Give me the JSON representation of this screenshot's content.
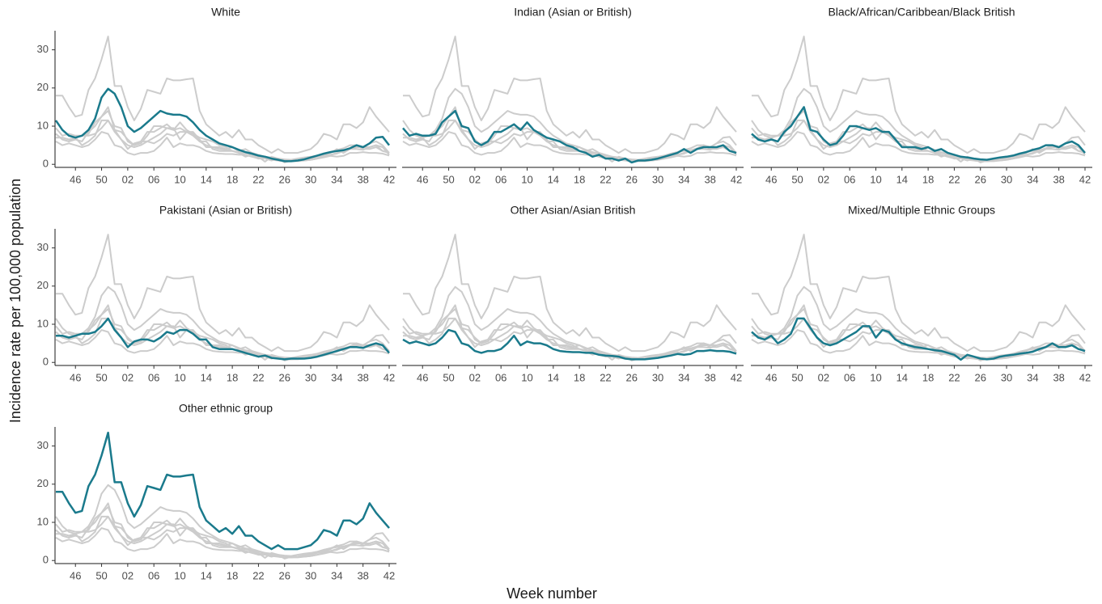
{
  "chart_data": {
    "type": "line",
    "x_label": "Week number",
    "y_label": "Incidence rate per 100,000 population",
    "highlight_color": "#1a7a8c",
    "background_color": "#cccccc",
    "categories": [
      null,
      null,
      null,
      "46",
      null,
      null,
      null,
      "50",
      null,
      null,
      null,
      "02",
      null,
      null,
      null,
      "06",
      null,
      null,
      null,
      "10",
      null,
      null,
      null,
      "14",
      null,
      null,
      null,
      "18",
      null,
      null,
      null,
      "22",
      null,
      null,
      null,
      "26",
      null,
      null,
      null,
      "30",
      null,
      null,
      null,
      "34",
      null,
      null,
      null,
      "38",
      null,
      null,
      null,
      "42"
    ],
    "ylim": [
      -0.8,
      35
    ],
    "yticks": [
      0,
      10,
      20,
      30
    ],
    "series": [
      {
        "name": "White",
        "values": [
          11.5,
          9,
          7.5,
          7,
          7.5,
          9,
          12,
          17.5,
          19.8,
          18.5,
          15,
          10,
          8.5,
          9.5,
          11,
          12.5,
          14,
          13.3,
          13,
          13,
          12.5,
          11,
          9,
          7.5,
          6.5,
          5.5,
          5,
          4.5,
          3.8,
          3.2,
          2.8,
          2.3,
          2,
          1.5,
          1.2,
          0.8,
          0.8,
          1,
          1.3,
          1.8,
          2.3,
          2.8,
          3.2,
          3.5,
          3.7,
          4.2,
          5,
          4.5,
          5.5,
          7,
          7.2,
          5
        ]
      },
      {
        "name": "Indian (Asian or British)",
        "values": [
          9.5,
          7.5,
          8,
          7.5,
          7.5,
          8,
          11,
          12.5,
          14,
          10,
          9.5,
          6,
          5,
          6,
          8.5,
          8.5,
          9.5,
          10.5,
          9,
          11,
          9,
          8,
          7,
          6.5,
          6,
          5,
          4.5,
          3.5,
          3,
          2,
          2.5,
          1.5,
          1.5,
          1,
          1.5,
          0.5,
          1,
          1,
          1.2,
          1.5,
          2,
          2.5,
          3,
          4,
          3,
          4,
          4.5,
          4.5,
          4.5,
          5,
          3.5,
          3
        ]
      },
      {
        "name": "Black/African/Caribbean/Black British",
        "values": [
          8,
          6.5,
          6,
          6.5,
          6,
          8.5,
          10,
          12.5,
          15,
          9,
          8.5,
          6.5,
          5,
          5.5,
          7.5,
          10,
          10,
          9.5,
          9,
          9.5,
          8.5,
          8.5,
          6.5,
          4.5,
          4.5,
          4.5,
          4,
          4.5,
          3.5,
          4,
          3,
          2.5,
          2,
          1.8,
          1.5,
          1.3,
          1.2,
          1.5,
          1.8,
          2,
          2.3,
          2.8,
          3.2,
          3.8,
          4.2,
          5,
          5,
          4.5,
          5.5,
          6,
          5,
          3
        ]
      },
      {
        "name": "Pakistani (Asian or British)",
        "values": [
          7,
          7,
          6.5,
          7,
          7.5,
          7.5,
          8,
          9.5,
          11.5,
          8.5,
          6.5,
          4,
          5.5,
          6,
          6,
          5.5,
          6.5,
          8,
          7.5,
          8.5,
          8.5,
          7.5,
          6,
          6,
          4,
          3.5,
          3.5,
          3.5,
          3,
          2.5,
          2,
          1.5,
          1.8,
          1.2,
          1,
          0.8,
          1,
          1,
          1,
          1.2,
          1.5,
          2,
          2.5,
          3,
          3.5,
          4,
          4,
          3.8,
          4.5,
          5,
          4.5,
          2.5
        ]
      },
      {
        "name": "Other Asian/Asian British",
        "values": [
          6,
          5,
          5.5,
          5,
          4.5,
          5,
          6.5,
          8.5,
          8,
          5,
          4.5,
          3,
          2.5,
          3,
          3,
          3.5,
          5,
          7,
          4.5,
          5.5,
          5,
          5,
          4.5,
          3.5,
          3,
          2.8,
          2.7,
          2.7,
          2.5,
          2.5,
          2,
          1.8,
          1.7,
          1.5,
          1,
          0.8,
          0.8,
          0.8,
          1,
          1.2,
          1.5,
          1.8,
          2.2,
          2,
          2.2,
          3,
          3,
          3.2,
          3,
          3,
          2.8,
          2.3
        ]
      },
      {
        "name": "Mixed/Multiple Ethnic Groups",
        "values": [
          8,
          6.5,
          6,
          7,
          5,
          6,
          7.5,
          11.5,
          11.5,
          9,
          6.5,
          5,
          4.5,
          5,
          6,
          7,
          8,
          9.5,
          9.5,
          6.5,
          8.5,
          8,
          6,
          5,
          4.5,
          4,
          3.8,
          3.5,
          3.2,
          3,
          2.5,
          2,
          0.7,
          2,
          1.5,
          1,
          0.8,
          1,
          1.5,
          1.8,
          2,
          2.3,
          2.5,
          2.8,
          3.5,
          4,
          5,
          4,
          4,
          4.5,
          3.5,
          3
        ]
      },
      {
        "name": "Other ethnic group",
        "values": [
          18,
          18,
          15,
          12.5,
          13,
          19.5,
          22.5,
          27.5,
          33.5,
          20.5,
          20.5,
          15,
          11.5,
          14.5,
          19.5,
          19,
          18.5,
          22.5,
          22,
          22,
          22.3,
          22.5,
          14,
          10.5,
          9,
          7.5,
          8.5,
          7,
          9,
          6.5,
          6.5,
          5,
          4,
          3,
          4,
          3,
          3,
          3,
          3.5,
          4,
          5.5,
          8,
          7.5,
          6.5,
          10.5,
          10.5,
          9.5,
          11,
          15,
          12.5,
          10.5,
          8.5
        ]
      }
    ]
  }
}
